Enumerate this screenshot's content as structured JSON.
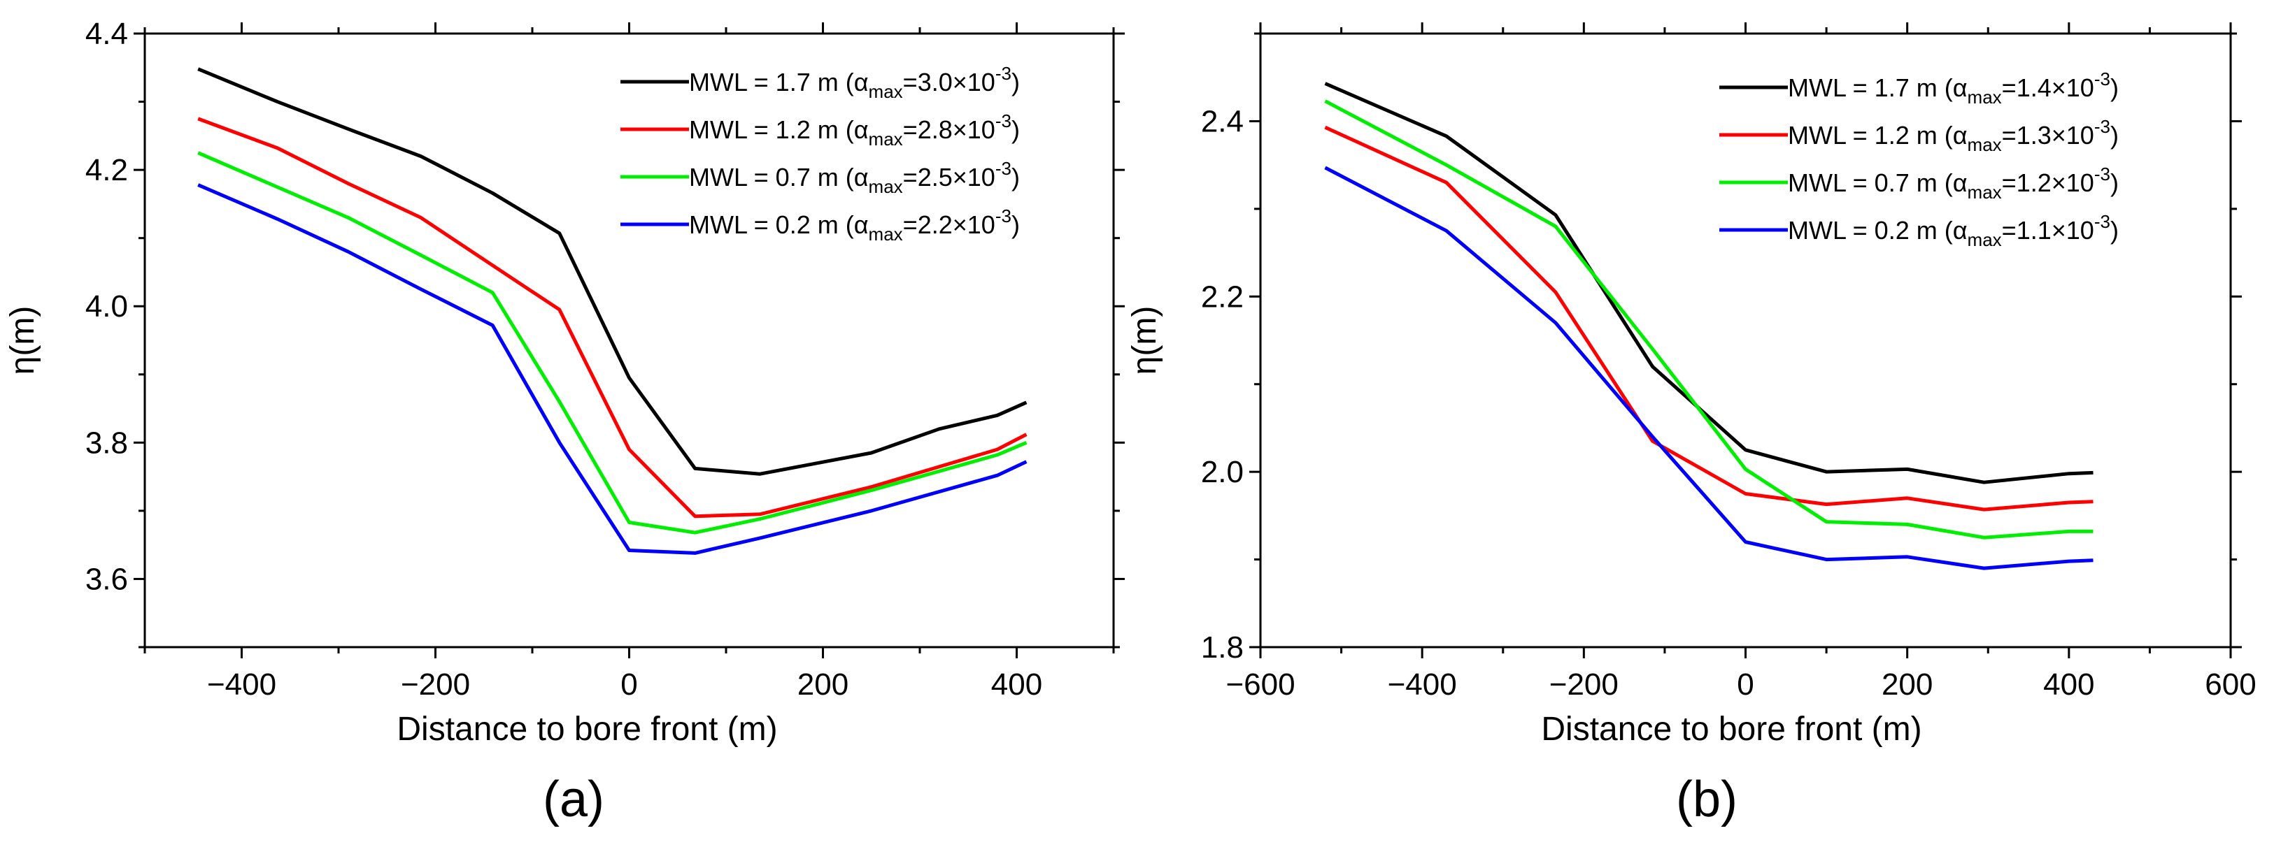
{
  "chart_data": [
    {
      "type": "line",
      "panel_label": "(a)",
      "xlabel": "Distance to bore front (m)",
      "ylabel": "η(m)",
      "xlim": [
        -500,
        500
      ],
      "ylim": [
        3.5,
        4.4
      ],
      "xticks": [
        -400,
        -200,
        0,
        200,
        400
      ],
      "xtick_labels": [
        "−400",
        "−200",
        "0",
        "200",
        "400"
      ],
      "yticks": [
        3.6,
        3.8,
        4.0,
        4.2,
        4.4
      ],
      "ytick_labels": [
        "3.6",
        "3.8",
        "4.0",
        "4.2",
        "4.4"
      ],
      "legend_position": "top-right",
      "series": [
        {
          "name": "MWL = 1.7 m",
          "alpha_max": "3.0×10",
          "exp": "-3",
          "color": "#000000",
          "x": [
            -445,
            -363,
            -290,
            -215,
            -141,
            -72,
            0,
            68,
            135,
            250,
            320,
            380,
            410
          ],
          "y": [
            4.348,
            4.3,
            4.26,
            4.22,
            4.166,
            4.107,
            3.895,
            3.762,
            3.754,
            3.785,
            3.82,
            3.84,
            3.859
          ]
        },
        {
          "name": "MWL = 1.2 m",
          "alpha_max": "2.8×10",
          "exp": "-3",
          "color": "#ff0000",
          "x": [
            -445,
            -363,
            -290,
            -215,
            -141,
            -72,
            0,
            68,
            135,
            250,
            380,
            410
          ],
          "y": [
            4.275,
            4.232,
            4.18,
            4.13,
            4.06,
            3.995,
            3.79,
            3.692,
            3.695,
            3.735,
            3.79,
            3.812
          ]
        },
        {
          "name": "MWL = 0.7 m",
          "alpha_max": "2.5×10",
          "exp": "-3",
          "color": "#00ee00",
          "x": [
            -445,
            -290,
            -215,
            -141,
            -72,
            0,
            68,
            135,
            250,
            380,
            410
          ],
          "y": [
            4.225,
            4.13,
            4.075,
            4.02,
            3.86,
            3.683,
            3.668,
            3.688,
            3.73,
            3.782,
            3.8
          ]
        },
        {
          "name": "MWL = 0.2 m",
          "alpha_max": "2.2×10",
          "exp": "-3",
          "color": "#0000ff",
          "x": [
            -445,
            -363,
            -290,
            -215,
            -141,
            -72,
            0,
            68,
            135,
            250,
            380,
            410
          ],
          "y": [
            4.178,
            4.128,
            4.08,
            4.025,
            3.972,
            3.8,
            3.642,
            3.638,
            3.66,
            3.7,
            3.752,
            3.772
          ]
        }
      ]
    },
    {
      "type": "line",
      "panel_label": "(b)",
      "xlabel": "Distance to bore front (m)",
      "ylabel": "η(m)",
      "xlim": [
        -600,
        600
      ],
      "ylim": [
        1.8,
        2.5
      ],
      "xticks": [
        -600,
        -400,
        -200,
        0,
        200,
        400,
        600
      ],
      "xtick_labels": [
        "−600",
        "−400",
        "−200",
        "0",
        "200",
        "400",
        "600"
      ],
      "yticks": [
        1.8,
        2.0,
        2.2,
        2.4
      ],
      "ytick_labels": [
        "1.8",
        "2.0",
        "2.2",
        "2.4"
      ],
      "legend_position": "top-right",
      "series": [
        {
          "name": "MWL = 1.7 m",
          "alpha_max": "1.4×10",
          "exp": "-3",
          "color": "#000000",
          "x": [
            -520,
            -370,
            -235,
            -115,
            0,
            100,
            200,
            295,
            400,
            430
          ],
          "y": [
            2.443,
            2.383,
            2.293,
            2.12,
            2.025,
            2.0,
            2.003,
            1.988,
            1.998,
            1.999
          ]
        },
        {
          "name": "MWL = 1.2 m",
          "alpha_max": "1.3×10",
          "exp": "-3",
          "color": "#ff0000",
          "x": [
            -520,
            -370,
            -235,
            -115,
            0,
            100,
            200,
            295,
            400,
            430
          ],
          "y": [
            2.393,
            2.33,
            2.205,
            2.035,
            1.975,
            1.963,
            1.97,
            1.957,
            1.965,
            1.966
          ]
        },
        {
          "name": "MWL = 0.7 m",
          "alpha_max": "1.2×10",
          "exp": "-3",
          "color": "#00ee00",
          "x": [
            -520,
            -370,
            -235,
            -115,
            0,
            100,
            200,
            295,
            400,
            430
          ],
          "y": [
            2.423,
            2.35,
            2.28,
            2.14,
            2.003,
            1.943,
            1.94,
            1.925,
            1.932,
            1.932
          ]
        },
        {
          "name": "MWL = 0.2 m",
          "alpha_max": "1.1×10",
          "exp": "-3",
          "color": "#0000ff",
          "x": [
            -520,
            -370,
            -235,
            -115,
            0,
            100,
            200,
            295,
            400,
            430
          ],
          "y": [
            2.347,
            2.275,
            2.17,
            2.04,
            1.92,
            1.9,
            1.903,
            1.89,
            1.898,
            1.899
          ]
        }
      ]
    }
  ]
}
